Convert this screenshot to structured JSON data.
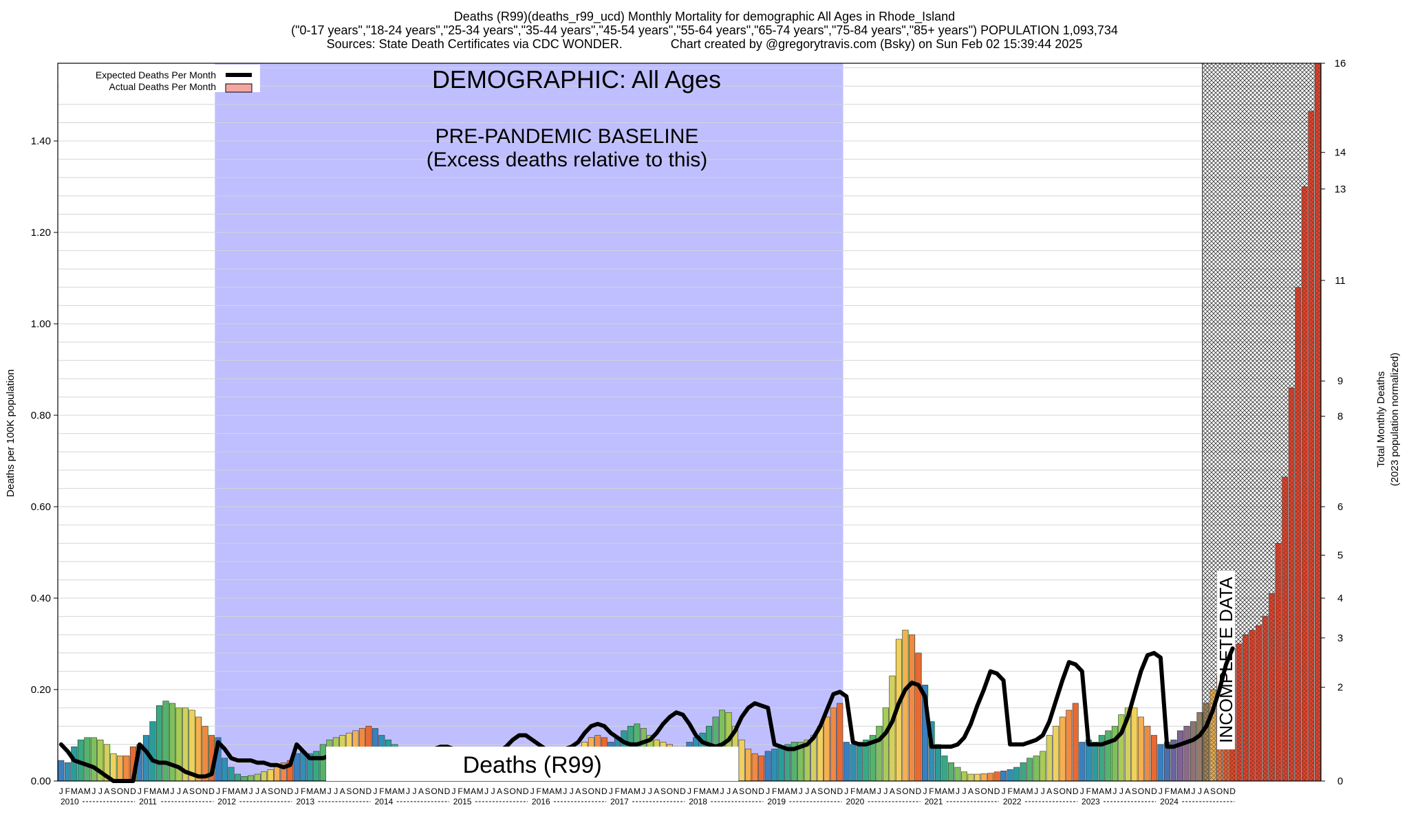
{
  "header": {
    "title_line1": "Deaths (R99)(deaths_r99_ucd) Monthly Mortality for demographic All Ages in Rhode_Island",
    "title_line2": "(\"0-17 years\",\"18-24 years\",\"25-34 years\",\"35-44 years\",\"45-54 years\",\"55-64 years\",\"65-74 years\",\"75-84 years\",\"85+ years\") POPULATION 1,093,734",
    "title_line3": "Sources: State Death Certificates via CDC WONDER.              Chart created by @gregorytravis.com (Bsky) on Sun Feb 02 15:39:44 2025"
  },
  "colors": {
    "baseline_band": "#bfbfff",
    "excess_fill": "#99ff99",
    "expected_line": "#000000",
    "actual_swatch": "#f4a6a0"
  },
  "chart_data": {
    "type": "bar",
    "title": "DEMOGRAPHIC: All Ages",
    "baseline_label": "PRE-PANDEMIC BASELINE",
    "baseline_sublabel": "(Excess deaths relative to this)",
    "banner_label": "Deaths (R99)",
    "incomplete_label": "INCOMPLETE DATA",
    "ylabel": "Deaths per 100K population",
    "y2label": "Total Monthly Deaths",
    "y2label_sub": "(2023 population normalized)",
    "ylim": [
      0,
      1.57
    ],
    "y_ticks": [
      "0.00",
      "0.20",
      "0.40",
      "0.60",
      "0.80",
      "1.00",
      "1.20",
      "1.40"
    ],
    "y2_ticks": [
      "0",
      "2",
      "3",
      "4",
      "5",
      "6",
      "8",
      "9",
      "11",
      "13",
      "14",
      "16"
    ],
    "legend": [
      "Expected Deaths Per Month",
      "Actual Deaths Per Month"
    ],
    "legend_position": "top-left",
    "month_letters": [
      "J",
      "F",
      "M",
      "A",
      "M",
      "J",
      "J",
      "A",
      "S",
      "O",
      "N",
      "D"
    ],
    "years": [
      "2010",
      "2011",
      "2012",
      "2013",
      "2014",
      "2015",
      "2016",
      "2017",
      "2018",
      "2019",
      "2020",
      "2021",
      "2022",
      "2023",
      "2024"
    ],
    "baseline_period": [
      "2012-01",
      "2019-12"
    ],
    "incomplete_period": [
      "2024-08",
      "2024-12"
    ],
    "series": [
      {
        "name": "Actual Deaths Per Month",
        "values": [
          0.045,
          0.04,
          0.075,
          0.09,
          0.095,
          0.095,
          0.09,
          0.08,
          0.06,
          0.055,
          0.055,
          0.075,
          0.08,
          0.1,
          0.13,
          0.165,
          0.175,
          0.17,
          0.16,
          0.16,
          0.155,
          0.14,
          0.12,
          0.1,
          0.095,
          0.05,
          0.03,
          0.015,
          0.01,
          0.012,
          0.015,
          0.02,
          0.025,
          0.035,
          0.04,
          0.045,
          0.06,
          0.065,
          0.06,
          0.065,
          0.08,
          0.09,
          0.095,
          0.1,
          0.105,
          0.11,
          0.115,
          0.12,
          0.115,
          0.1,
          0.09,
          0.08,
          0.07,
          0.06,
          0.05,
          0.045,
          0.04,
          0.04,
          0.045,
          0.05,
          0.05,
          0.045,
          0.04,
          0.035,
          0.03,
          0.03,
          0.035,
          0.045,
          0.055,
          0.06,
          0.065,
          0.07,
          0.06,
          0.055,
          0.05,
          0.045,
          0.045,
          0.05,
          0.06,
          0.07,
          0.085,
          0.095,
          0.1,
          0.095,
          0.085,
          0.095,
          0.11,
          0.12,
          0.125,
          0.115,
          0.1,
          0.09,
          0.085,
          0.08,
          0.075,
          0.075,
          0.085,
          0.095,
          0.105,
          0.12,
          0.14,
          0.155,
          0.15,
          0.12,
          0.09,
          0.07,
          0.06,
          0.055,
          0.065,
          0.07,
          0.075,
          0.08,
          0.085,
          0.085,
          0.09,
          0.1,
          0.12,
          0.14,
          0.16,
          0.17,
          0.085,
          0.08,
          0.085,
          0.09,
          0.1,
          0.12,
          0.16,
          0.23,
          0.31,
          0.33,
          0.32,
          0.28,
          0.21,
          0.13,
          0.08,
          0.055,
          0.04,
          0.03,
          0.02,
          0.015,
          0.015,
          0.016,
          0.017,
          0.02,
          0.022,
          0.025,
          0.03,
          0.04,
          0.05,
          0.055,
          0.065,
          0.1,
          0.12,
          0.14,
          0.155,
          0.17,
          0.085,
          0.09,
          0.085,
          0.1,
          0.11,
          0.12,
          0.145,
          0.16,
          0.16,
          0.14,
          0.12,
          0.1,
          0.08,
          0.085,
          0.09,
          0.11,
          0.12,
          0.13,
          0.15,
          0.17,
          0.2,
          0.23,
          0.28,
          0.29,
          0.3,
          0.32,
          0.33,
          0.34,
          0.36,
          0.41,
          0.52,
          0.665,
          0.86,
          1.08,
          1.3,
          1.465,
          1.57
        ]
      },
      {
        "name": "Expected Deaths Per Month",
        "values": [
          0.08,
          0.065,
          0.045,
          0.04,
          0.035,
          0.03,
          0.02,
          0.01,
          0.0,
          0.0,
          0.0,
          0.0,
          0.08,
          0.065,
          0.045,
          0.04,
          0.04,
          0.035,
          0.03,
          0.02,
          0.015,
          0.01,
          0.01,
          0.015,
          0.085,
          0.07,
          0.05,
          0.045,
          0.045,
          0.045,
          0.04,
          0.04,
          0.035,
          0.035,
          0.03,
          0.035,
          0.08,
          0.065,
          0.05,
          0.05,
          0.05,
          0.055,
          0.06,
          0.06,
          0.06,
          0.06,
          0.06,
          0.06,
          0.06,
          0.06,
          0.06,
          0.06,
          0.06,
          0.06,
          0.06,
          0.06,
          0.06,
          0.07,
          0.075,
          0.075,
          0.07,
          0.07,
          0.06,
          0.06,
          0.06,
          0.06,
          0.06,
          0.065,
          0.075,
          0.09,
          0.1,
          0.1,
          0.09,
          0.08,
          0.07,
          0.065,
          0.065,
          0.07,
          0.075,
          0.085,
          0.105,
          0.12,
          0.125,
          0.12,
          0.105,
          0.095,
          0.085,
          0.08,
          0.08,
          0.085,
          0.09,
          0.105,
          0.125,
          0.14,
          0.15,
          0.145,
          0.125,
          0.1,
          0.085,
          0.08,
          0.075,
          0.08,
          0.09,
          0.11,
          0.14,
          0.16,
          0.17,
          0.165,
          0.16,
          0.08,
          0.075,
          0.07,
          0.07,
          0.075,
          0.08,
          0.095,
          0.12,
          0.155,
          0.19,
          0.195,
          0.185,
          0.085,
          0.08,
          0.08,
          0.085,
          0.09,
          0.105,
          0.13,
          0.17,
          0.2,
          0.215,
          0.21,
          0.185,
          0.075,
          0.075,
          0.075,
          0.075,
          0.08,
          0.095,
          0.125,
          0.165,
          0.2,
          0.24,
          0.235,
          0.22,
          0.08,
          0.08,
          0.08,
          0.085,
          0.09,
          0.1,
          0.13,
          0.175,
          0.22,
          0.26,
          0.255,
          0.24,
          0.08,
          0.08,
          0.08,
          0.085,
          0.09,
          0.105,
          0.14,
          0.19,
          0.24,
          0.275,
          0.28,
          0.27,
          0.075,
          0.075,
          0.08,
          0.085,
          0.09,
          0.1,
          0.12,
          0.155,
          0.2,
          0.255,
          0.29
        ]
      }
    ]
  }
}
